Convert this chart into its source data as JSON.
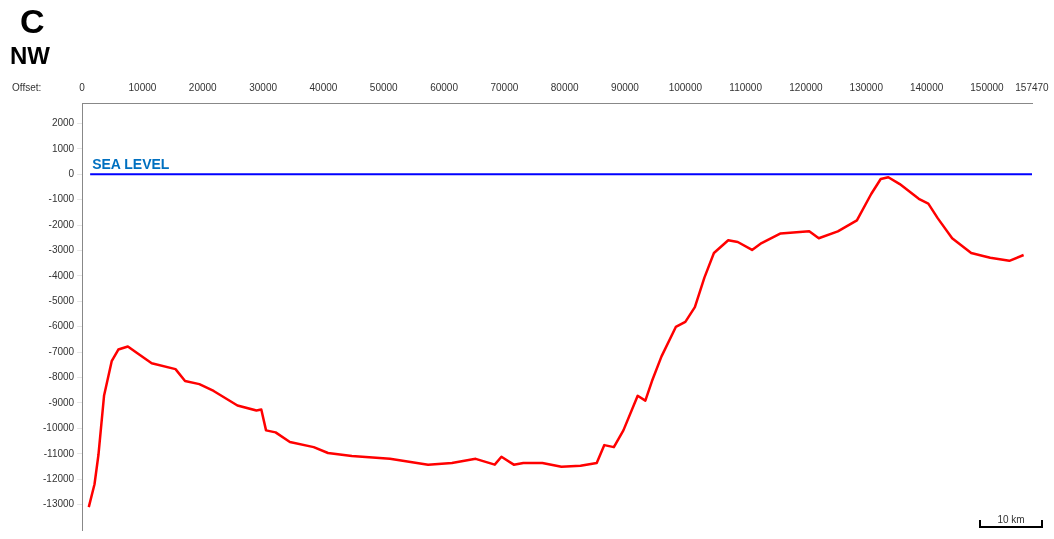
{
  "chart_data": {
    "type": "line",
    "title": "C",
    "subtitle": "NW",
    "xlabel": "Offset:",
    "x": [
      1100,
      2050,
      2700,
      3630,
      4900,
      6000,
      7580,
      9160,
      11530,
      15480,
      17060,
      19430,
      21800,
      25750,
      28900,
      29700,
      30490,
      32070,
      34440,
      38390,
      40760,
      44710,
      51030,
      57350,
      61300,
      65240,
      68400,
      69510,
      71560,
      73140,
      76300,
      79460,
      82620,
      85310,
      86570,
      88150,
      89730,
      92100,
      93370,
      94470,
      96050,
      98420,
      100000,
      101580,
      103160,
      104740,
      107110,
      108690,
      111060,
      112640,
      115800,
      120540,
      122120,
      125280,
      128440,
      130810,
      132390,
      133650,
      135550,
      138700,
      140280,
      141860,
      144230,
      147390,
      150550,
      153710,
      156080
    ],
    "series": [
      {
        "color": "#ff0000",
        "values": [
          -13100,
          -12200,
          -11050,
          -8720,
          -7360,
          -6900,
          -6780,
          -7050,
          -7440,
          -7670,
          -8140,
          -8260,
          -8530,
          -9100,
          -9300,
          -9260,
          -10080,
          -10160,
          -10540,
          -10740,
          -10970,
          -11090,
          -11200,
          -11430,
          -11360,
          -11200,
          -11430,
          -11120,
          -11430,
          -11360,
          -11360,
          -11510,
          -11470,
          -11360,
          -10660,
          -10740,
          -10080,
          -8720,
          -8910,
          -8140,
          -7170,
          -6010,
          -5810,
          -5230,
          -4070,
          -3100,
          -2600,
          -2670,
          -2980,
          -2710,
          -2330,
          -2250,
          -2520,
          -2250,
          -1820,
          -780,
          -190,
          -120,
          -390,
          -970,
          -1160,
          -1740,
          -2520,
          -3100,
          -3290,
          -3410,
          -3180
        ]
      }
    ],
    "xlim": [
      0,
      157470
    ],
    "xticks": [
      0,
      10000,
      20000,
      30000,
      40000,
      50000,
      60000,
      70000,
      80000,
      90000,
      100000,
      110000,
      120000,
      130000,
      140000,
      150000,
      157470
    ],
    "ylim": [
      -14000,
      2800
    ],
    "yticks": [
      -13000,
      -12000,
      -11000,
      -10000,
      {
        "value": -9000,
        "label": "-9000"
      },
      -8000,
      -7000,
      -6000,
      -5000,
      -4000,
      -3000,
      -2000,
      -1000,
      0,
      1000,
      2000
    ],
    "ref_lines": [
      {
        "axis": "y",
        "value": 0,
        "label": "SEA LEVEL",
        "color": "#0000ff"
      }
    ],
    "annotations": [
      "10 km"
    ],
    "grid": false,
    "legend": false,
    "marker": "none",
    "line_style": "solid"
  }
}
